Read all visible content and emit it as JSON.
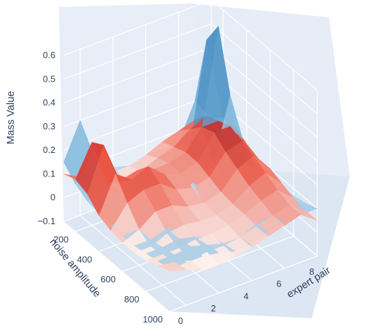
{
  "chart_data": {
    "type": "surface",
    "title": "",
    "axes": {
      "z": {
        "title": "Mass Value",
        "range": [
          -0.1,
          0.6
        ],
        "ticks": [
          -0.1,
          0,
          0.1,
          0.2,
          0.3,
          0.4,
          0.5,
          0.6
        ],
        "tick_labels": [
          "−0.1",
          "0",
          "0.1",
          "0.2",
          "0.3",
          "0.4",
          "0.5",
          "0.6"
        ]
      },
      "x": {
        "title": "noise amplitude",
        "range": [
          100,
          1000
        ],
        "ticks": [
          200,
          400,
          600,
          800,
          1000
        ],
        "tick_labels": [
          "200",
          "400",
          "600",
          "800",
          "1000"
        ]
      },
      "y": {
        "title": "expert pair",
        "range": [
          0,
          9
        ],
        "ticks": [
          0,
          2,
          4,
          6,
          8
        ],
        "tick_labels": [
          "0",
          "2",
          "4",
          "6",
          "8"
        ]
      }
    },
    "series": [
      {
        "colorscale": "Blues",
        "x": [
          100,
          200,
          300,
          400,
          500,
          600,
          700,
          800,
          900,
          1000
        ],
        "y": [
          0,
          1,
          2,
          3,
          4,
          5,
          6,
          7,
          8,
          9
        ],
        "z": [
          [
            0.15,
            0.1,
            0.07,
            0.06,
            0.05,
            0.05,
            0.05,
            0.06,
            0.07,
            0.08
          ],
          [
            0.3,
            0.2,
            0.1,
            0.07,
            0.06,
            0.05,
            0.05,
            0.06,
            0.07,
            0.08
          ],
          [
            0.1,
            0.06,
            0.05,
            0.05,
            0.05,
            0.06,
            0.07,
            0.07,
            0.08,
            0.08
          ],
          [
            0.05,
            0.04,
            0.03,
            0.02,
            0.02,
            0.03,
            0.04,
            0.05,
            0.06,
            0.07
          ],
          [
            0.03,
            0.02,
            0.0,
            -0.05,
            -0.1,
            -0.05,
            0.0,
            0.03,
            0.04,
            0.05
          ],
          [
            0.05,
            0.04,
            0.02,
            0.03,
            0.1,
            0.05,
            0.03,
            0.03,
            0.04,
            0.05
          ],
          [
            0.05,
            0.06,
            0.08,
            0.07,
            0.05,
            0.04,
            0.05,
            0.06,
            0.07,
            0.08
          ],
          [
            0.05,
            0.08,
            0.2,
            0.1,
            0.05,
            0.05,
            0.06,
            0.07,
            0.08,
            0.09
          ],
          [
            0.2,
            0.5,
            0.6,
            0.35,
            0.1,
            0.05,
            0.06,
            0.07,
            0.08,
            0.1
          ],
          [
            0.1,
            0.15,
            0.12,
            0.08,
            0.06,
            0.05,
            0.06,
            0.07,
            0.08,
            0.1
          ]
        ]
      },
      {
        "colorscale": "Reds",
        "x": [
          100,
          200,
          300,
          400,
          500,
          600,
          700,
          800,
          900,
          1000
        ],
        "y": [
          0,
          1,
          2,
          3,
          4,
          5,
          6,
          7,
          8,
          9
        ],
        "z": [
          [
            0.1,
            0.12,
            0.1,
            0.05,
            0.03,
            0.02,
            0.02,
            0.03,
            0.05,
            0.07
          ],
          [
            0.06,
            0.25,
            0.28,
            0.2,
            0.12,
            0.05,
            0.02,
            0.03,
            0.04,
            0.05
          ],
          [
            0.02,
            0.05,
            0.1,
            0.15,
            0.15,
            0.1,
            0.05,
            0.03,
            0.02,
            0.02
          ],
          [
            0.03,
            0.05,
            0.12,
            0.18,
            0.15,
            0.1,
            0.06,
            0.04,
            0.03,
            0.02
          ],
          [
            0.03,
            0.05,
            0.1,
            0.12,
            0.1,
            0.07,
            0.05,
            0.04,
            0.03,
            0.03
          ],
          [
            0.05,
            0.08,
            0.1,
            0.1,
            0.08,
            0.06,
            0.05,
            0.05,
            0.04,
            0.04
          ],
          [
            0.08,
            0.1,
            0.12,
            0.12,
            0.1,
            0.08,
            0.07,
            0.07,
            0.06,
            0.06
          ],
          [
            0.1,
            0.15,
            0.2,
            0.22,
            0.18,
            0.15,
            0.12,
            0.1,
            0.08,
            0.08
          ],
          [
            0.12,
            0.18,
            0.2,
            0.22,
            0.2,
            0.18,
            0.15,
            0.12,
            0.1,
            0.1
          ],
          [
            0.1,
            0.12,
            0.15,
            0.12,
            0.1,
            0.1,
            0.08,
            0.06,
            0.05,
            0.05
          ]
        ]
      }
    ],
    "scene": {
      "background": "#e5ecf6",
      "grid": true,
      "legend": "none"
    }
  }
}
